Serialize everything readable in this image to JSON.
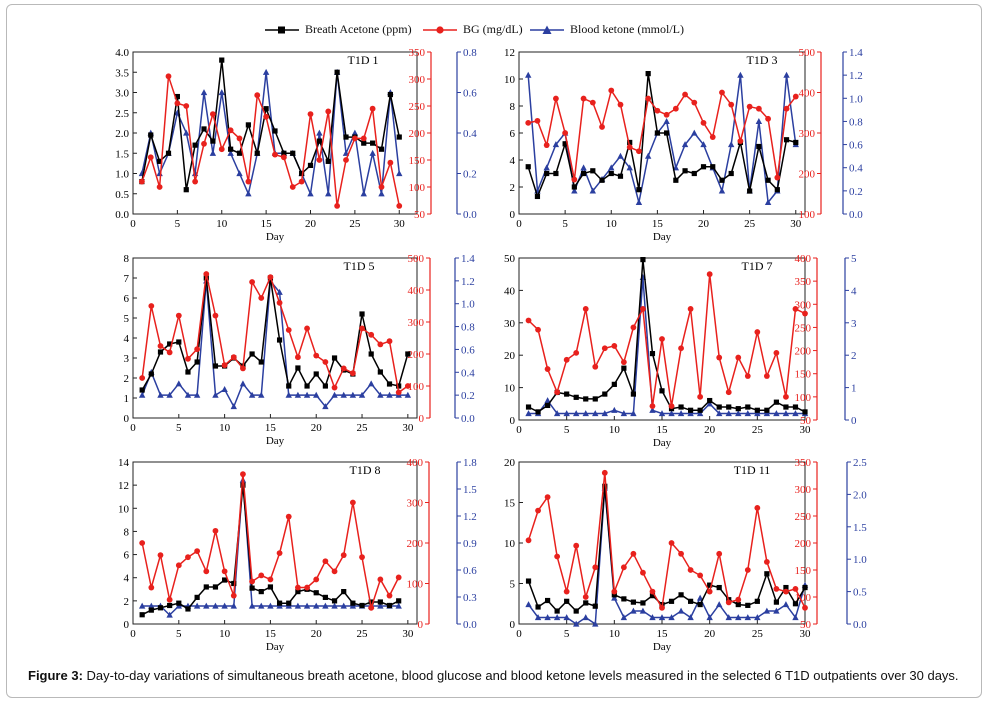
{
  "legend": [
    {
      "name": "Breath Acetone (ppm)",
      "color": "#000000",
      "marker": "square"
    },
    {
      "name": "BG (mg/dL)",
      "color": "#e8211d",
      "marker": "circle"
    },
    {
      "name": "Blood ketone (mmol/L)",
      "color": "#2b3fa0",
      "marker": "triangle"
    }
  ],
  "caption": {
    "label": "Figure 3:",
    "text": " Day-to-day variations of simultaneous breath acetone, blood glucose and blood ketone levels measured in the selected 6 T1D outpatients over 30 days."
  },
  "chart_data": [
    {
      "type": "line",
      "title": "T1D 1",
      "xlabel": "Day",
      "xlim": [
        0,
        32
      ],
      "xticks": [
        0,
        5,
        10,
        15,
        20,
        25,
        30
      ],
      "y_left": {
        "lim": [
          0,
          4
        ],
        "ticks": [
          "0.0",
          "0.5",
          "1.0",
          "1.5",
          "2.0",
          "2.5",
          "3.0",
          "3.5",
          "4.0"
        ]
      },
      "y_mid": {
        "lim": [
          50,
          350
        ],
        "ticks": [
          "50",
          "100",
          "150",
          "200",
          "250",
          "300",
          "350"
        ]
      },
      "y_right": {
        "lim": [
          0,
          0.8
        ],
        "ticks": [
          "0.0",
          "0.2",
          "0.4",
          "0.6",
          "0.8"
        ]
      },
      "x": [
        1,
        2,
        3,
        4,
        5,
        6,
        7,
        8,
        9,
        10,
        11,
        12,
        13,
        14,
        15,
        16,
        17,
        18,
        19,
        20,
        21,
        22,
        23,
        24,
        25,
        26,
        27,
        28,
        29,
        30
      ],
      "series": [
        {
          "name": "Breath Acetone (ppm)",
          "axis": "left",
          "values": [
            0.8,
            1.95,
            1.3,
            1.5,
            2.9,
            0.6,
            1.7,
            2.1,
            1.8,
            3.8,
            1.6,
            1.5,
            2.2,
            1.5,
            2.6,
            2.05,
            1.5,
            1.5,
            1.0,
            1.2,
            1.8,
            1.3,
            3.5,
            1.9,
            1.9,
            1.75,
            1.75,
            1.6,
            2.95,
            1.9
          ]
        },
        {
          "name": "BG (mg/dL)",
          "axis": "mid",
          "values": [
            110,
            155,
            100,
            305,
            255,
            250,
            110,
            180,
            235,
            170,
            205,
            190,
            110,
            270,
            230,
            160,
            155,
            100,
            110,
            235,
            150,
            240,
            65,
            150,
            190,
            190,
            245,
            100,
            145,
            65
          ]
        },
        {
          "name": "Blood ketone (mmol/L)",
          "axis": "right",
          "values": [
            0.2,
            0.4,
            0.2,
            0.3,
            0.5,
            0.4,
            0.2,
            0.6,
            0.3,
            0.6,
            0.3,
            0.2,
            0.1,
            0.3,
            0.7,
            0.3,
            0.3,
            0.3,
            0.2,
            0.1,
            0.4,
            0.1,
            0.7,
            0.3,
            0.4,
            0.1,
            0.3,
            0.1,
            0.6,
            0.2
          ]
        }
      ]
    },
    {
      "type": "line",
      "title": "T1D 3",
      "xlabel": "Day",
      "xlim": [
        0,
        31
      ],
      "xticks": [
        0,
        5,
        10,
        15,
        20,
        25,
        30
      ],
      "y_left": {
        "lim": [
          0,
          12
        ],
        "ticks": [
          "0",
          "2",
          "4",
          "6",
          "8",
          "10",
          "12"
        ]
      },
      "y_mid": {
        "lim": [
          100,
          500
        ],
        "ticks": [
          "100",
          "200",
          "300",
          "400",
          "500"
        ]
      },
      "y_right": {
        "lim": [
          0,
          1.4
        ],
        "ticks": [
          "0.0",
          "0.2",
          "0.4",
          "0.6",
          "0.8",
          "1.0",
          "1.2",
          "1.4"
        ]
      },
      "x": [
        1,
        2,
        3,
        4,
        5,
        6,
        7,
        8,
        9,
        10,
        11,
        12,
        13,
        14,
        15,
        16,
        17,
        18,
        19,
        20,
        21,
        22,
        23,
        24,
        25,
        26,
        27,
        28,
        29,
        30
      ],
      "series": [
        {
          "name": "Breath Acetone (ppm)",
          "axis": "left",
          "values": [
            3.5,
            1.3,
            3.0,
            3.0,
            5.2,
            2.0,
            3.0,
            3.2,
            2.5,
            3.0,
            2.8,
            5.3,
            1.8,
            10.4,
            6.0,
            6.0,
            2.5,
            3.2,
            3.0,
            3.5,
            3.5,
            2.5,
            3.0,
            5.3,
            1.7,
            5.0,
            2.5,
            1.8,
            5.5,
            5.3
          ]
        },
        {
          "name": "BG (mg/dL)",
          "axis": "mid",
          "values": [
            325,
            330,
            270,
            385,
            300,
            185,
            385,
            375,
            315,
            405,
            370,
            265,
            255,
            385,
            355,
            345,
            360,
            395,
            375,
            325,
            290,
            400,
            370,
            280,
            365,
            360,
            335,
            190,
            360,
            390
          ]
        },
        {
          "name": "Blood ketone (mmol/L)",
          "axis": "right",
          "values": [
            1.2,
            0.2,
            0.4,
            0.6,
            0.7,
            0.2,
            0.4,
            0.2,
            0.3,
            0.4,
            0.5,
            0.4,
            0.1,
            0.5,
            0.7,
            0.8,
            0.4,
            0.6,
            0.7,
            0.6,
            0.4,
            0.2,
            0.6,
            1.2,
            0.2,
            0.8,
            0.1,
            0.2,
            1.2,
            0.6
          ]
        }
      ]
    },
    {
      "type": "line",
      "title": "T1D 5",
      "xlabel": "Day",
      "xlim": [
        0,
        31
      ],
      "xticks": [
        0,
        5,
        10,
        15,
        20,
        25,
        30
      ],
      "y_left": {
        "lim": [
          0,
          8
        ],
        "ticks": [
          "0",
          "1",
          "2",
          "3",
          "4",
          "5",
          "6",
          "7",
          "8"
        ]
      },
      "y_mid": {
        "lim": [
          0,
          500
        ],
        "ticks": [
          "0",
          "100",
          "200",
          "300",
          "400",
          "500"
        ]
      },
      "y_right": {
        "lim": [
          0,
          1.4
        ],
        "ticks": [
          "0.0",
          "0.2",
          "0.4",
          "0.6",
          "0.8",
          "1.0",
          "1.2",
          "1.4"
        ]
      },
      "x": [
        1,
        2,
        3,
        4,
        5,
        6,
        7,
        8,
        9,
        10,
        11,
        12,
        13,
        14,
        15,
        16,
        17,
        18,
        19,
        20,
        21,
        22,
        23,
        24,
        25,
        26,
        27,
        28,
        29,
        30
      ],
      "series": [
        {
          "name": "Breath Acetone (ppm)",
          "axis": "left",
          "values": [
            1.4,
            2.2,
            3.3,
            3.7,
            3.8,
            2.3,
            2.8,
            7.0,
            2.6,
            2.6,
            3.0,
            2.6,
            3.2,
            2.8,
            7.0,
            3.9,
            1.6,
            2.5,
            1.6,
            2.2,
            1.6,
            3.0,
            2.4,
            2.2,
            5.2,
            3.2,
            2.3,
            1.7,
            1.6,
            3.2
          ]
        },
        {
          "name": "BG (mg/dL)",
          "axis": "mid",
          "values": [
            125,
            350,
            225,
            205,
            320,
            185,
            215,
            450,
            320,
            165,
            190,
            155,
            425,
            375,
            440,
            360,
            275,
            190,
            280,
            195,
            175,
            95,
            155,
            140,
            280,
            260,
            230,
            240,
            80,
            100
          ]
        },
        {
          "name": "Blood ketone (mmol/L)",
          "axis": "right",
          "values": [
            0.2,
            0.4,
            0.2,
            0.2,
            0.3,
            0.2,
            0.2,
            1.2,
            0.2,
            0.25,
            0.1,
            0.3,
            0.2,
            0.2,
            1.2,
            1.1,
            0.2,
            0.2,
            0.2,
            0.2,
            0.1,
            0.2,
            0.2,
            0.2,
            0.2,
            0.3,
            0.2,
            0.2,
            0.2,
            0.2
          ]
        }
      ]
    },
    {
      "type": "line",
      "title": "T1D 7",
      "xlabel": "Day",
      "xlim": [
        0,
        30
      ],
      "xticks": [
        0,
        5,
        10,
        15,
        20,
        25,
        30
      ],
      "y_left": {
        "lim": [
          0,
          50
        ],
        "ticks": [
          "0",
          "10",
          "20",
          "30",
          "40",
          "50"
        ]
      },
      "y_mid": {
        "lim": [
          50,
          400
        ],
        "ticks": [
          "50",
          "100",
          "150",
          "200",
          "250",
          "300",
          "350",
          "400"
        ]
      },
      "y_right": {
        "lim": [
          0,
          5
        ],
        "ticks": [
          "0",
          "1",
          "2",
          "3",
          "4",
          "5"
        ]
      },
      "x": [
        1,
        2,
        3,
        4,
        5,
        6,
        7,
        8,
        9,
        10,
        11,
        12,
        13,
        14,
        15,
        16,
        17,
        18,
        19,
        20,
        21,
        22,
        23,
        24,
        25,
        26,
        27,
        28,
        29,
        30
      ],
      "series": [
        {
          "name": "Breath Acetone (ppm)",
          "axis": "left",
          "values": [
            4,
            2.5,
            4.5,
            8.5,
            8,
            7,
            6.5,
            6.5,
            8,
            11,
            16,
            8,
            49.5,
            20.5,
            9,
            3.5,
            4,
            3,
            3,
            6,
            4,
            4,
            3.5,
            4,
            3,
            3,
            5.5,
            4,
            4,
            2.5
          ]
        },
        {
          "name": "BG (mg/dL)",
          "axis": "mid",
          "values": [
            265,
            245,
            160,
            110,
            180,
            195,
            290,
            165,
            205,
            210,
            175,
            250,
            290,
            80,
            225,
            80,
            205,
            290,
            100,
            365,
            185,
            110,
            185,
            145,
            240,
            145,
            195,
            100,
            290,
            280
          ]
        },
        {
          "name": "Blood ketone (mmol/L)",
          "axis": "right",
          "values": [
            0.2,
            0.2,
            0.6,
            0.2,
            0.2,
            0.2,
            0.2,
            0.2,
            0.2,
            0.3,
            0.2,
            0.2,
            4.4,
            0.3,
            0.2,
            0.2,
            0.2,
            0.2,
            0.2,
            0.5,
            0.2,
            0.2,
            0.2,
            0.2,
            0.2,
            0.2,
            0.2,
            0.2,
            0.2,
            0.2
          ]
        }
      ]
    },
    {
      "type": "line",
      "title": "T1D 8",
      "xlabel": "Day",
      "xlim": [
        0,
        31
      ],
      "xticks": [
        0,
        5,
        10,
        15,
        20,
        25,
        30
      ],
      "y_left": {
        "lim": [
          0,
          14
        ],
        "ticks": [
          "0",
          "2",
          "4",
          "6",
          "8",
          "10",
          "12",
          "14"
        ]
      },
      "y_mid": {
        "lim": [
          0,
          400
        ],
        "ticks": [
          "0",
          "100",
          "200",
          "300",
          "400"
        ]
      },
      "y_right": {
        "lim": [
          0,
          1.8
        ],
        "ticks": [
          "0.0",
          "0.3",
          "0.6",
          "0.9",
          "1.2",
          "1.5",
          "1.8"
        ]
      },
      "x": [
        1,
        2,
        3,
        4,
        5,
        6,
        7,
        8,
        9,
        10,
        11,
        12,
        13,
        14,
        15,
        16,
        17,
        18,
        19,
        20,
        21,
        22,
        23,
        24,
        25,
        26,
        27,
        28,
        29
      ],
      "series": [
        {
          "name": "Breath Acetone (ppm)",
          "axis": "left",
          "values": [
            0.8,
            1.2,
            1.4,
            1.6,
            1.8,
            1.3,
            2.3,
            3.2,
            3.2,
            3.8,
            3.5,
            12.0,
            3.1,
            2.8,
            3.2,
            1.8,
            1.8,
            2.8,
            3.0,
            2.7,
            2.3,
            2.0,
            2.8,
            1.8,
            1.6,
            1.9,
            1.9,
            1.6,
            2.0
          ]
        },
        {
          "name": "BG (mg/dL)",
          "axis": "mid",
          "values": [
            200,
            90,
            170,
            60,
            145,
            165,
            180,
            130,
            230,
            130,
            70,
            370,
            105,
            120,
            110,
            175,
            265,
            90,
            90,
            110,
            155,
            130,
            170,
            300,
            165,
            40,
            110,
            70,
            115
          ]
        },
        {
          "name": "Blood ketone (mmol/L)",
          "axis": "right",
          "values": [
            0.2,
            0.2,
            0.2,
            0.1,
            0.2,
            0.2,
            0.2,
            0.2,
            0.2,
            0.2,
            0.2,
            1.6,
            0.2,
            0.2,
            0.2,
            0.2,
            0.2,
            0.2,
            0.2,
            0.2,
            0.2,
            0.2,
            0.2,
            0.2,
            0.2,
            0.2,
            0.2,
            0.2,
            0.2
          ]
        }
      ]
    },
    {
      "type": "line",
      "title": "T1D 11",
      "xlabel": "Day",
      "xlim": [
        0,
        30
      ],
      "xticks": [
        0,
        5,
        10,
        15,
        20,
        25,
        30
      ],
      "y_left": {
        "lim": [
          0,
          20
        ],
        "ticks": [
          "0",
          "5",
          "10",
          "15",
          "20"
        ]
      },
      "y_mid": {
        "lim": [
          50,
          350
        ],
        "ticks": [
          "50",
          "100",
          "150",
          "200",
          "250",
          "300",
          "350"
        ]
      },
      "y_right": {
        "lim": [
          0,
          2.5
        ],
        "ticks": [
          "0.0",
          "0.5",
          "1.0",
          "1.5",
          "2.0",
          "2.5"
        ]
      },
      "x": [
        1,
        2,
        3,
        4,
        5,
        6,
        7,
        8,
        9,
        10,
        11,
        12,
        13,
        14,
        15,
        16,
        17,
        18,
        19,
        20,
        21,
        22,
        23,
        24,
        25,
        26,
        27,
        28,
        29,
        30
      ],
      "series": [
        {
          "name": "Breath Acetone (ppm)",
          "axis": "left",
          "values": [
            5.3,
            2.1,
            2.9,
            1.6,
            2.8,
            1.6,
            2.6,
            2.2,
            17.0,
            3.6,
            3.1,
            2.7,
            2.6,
            3.5,
            2.4,
            2.8,
            3.6,
            2.8,
            2.4,
            4.8,
            4.5,
            3.0,
            2.4,
            2.3,
            2.8,
            6.2,
            2.7,
            4.5,
            2.5,
            4.5
          ]
        },
        {
          "name": "BG (mg/dL)",
          "axis": "mid",
          "values": [
            205,
            260,
            285,
            175,
            110,
            195,
            100,
            155,
            330,
            110,
            155,
            180,
            145,
            110,
            80,
            200,
            180,
            150,
            140,
            110,
            180,
            90,
            95,
            150,
            265,
            165,
            115,
            110,
            115,
            80
          ]
        },
        {
          "name": "Blood ketone (mmol/L)",
          "axis": "right",
          "values": [
            0.3,
            0.1,
            0.1,
            0.1,
            0.1,
            0.0,
            0.1,
            0.0,
            2.1,
            0.4,
            0.1,
            0.2,
            0.2,
            0.1,
            0.1,
            0.1,
            0.2,
            0.1,
            0.4,
            0.1,
            0.3,
            0.1,
            0.1,
            0.1,
            0.1,
            0.2,
            0.2,
            0.3,
            0.1,
            0.6
          ]
        }
      ]
    }
  ]
}
